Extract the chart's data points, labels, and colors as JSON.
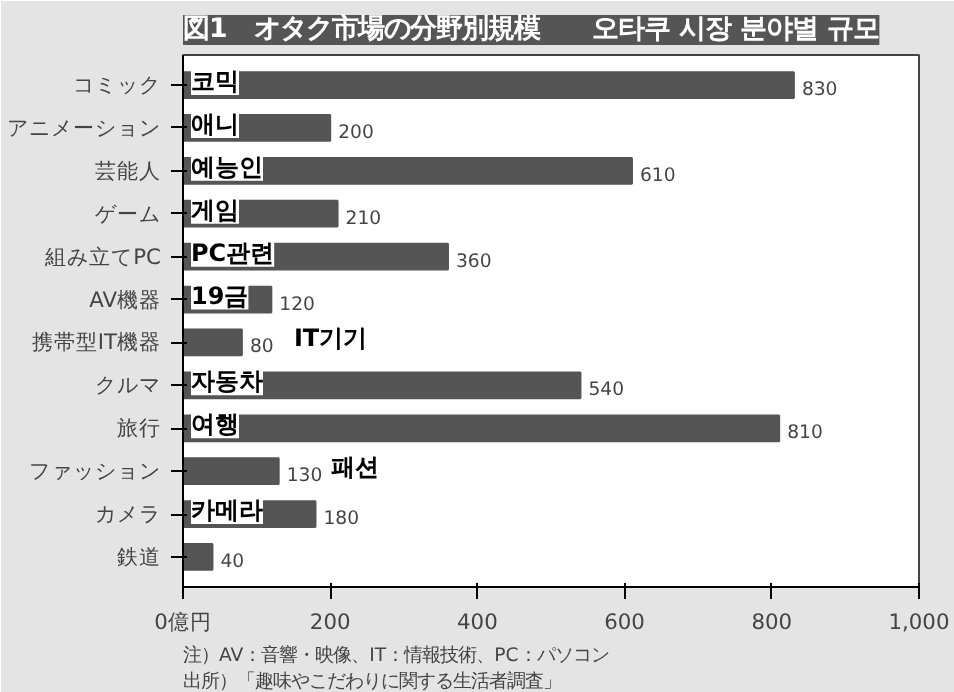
{
  "chart_data": {
    "type": "bar",
    "orientation": "horizontal",
    "title": "図1　オタク市場の分野別規模",
    "subtitle": "오타쿠 시장 분야별 규모",
    "categories": [
      "コミック",
      "アニメーション",
      "芸能人",
      "ゲーム",
      "組み立てPC",
      "AV機器",
      "携帯型IT機器",
      "クルマ",
      "旅行",
      "ファッション",
      "カメラ",
      "鉄道"
    ],
    "values": [
      830,
      200,
      610,
      210,
      360,
      120,
      80,
      540,
      810,
      130,
      180,
      40
    ],
    "color": "#555555",
    "data_labels": true,
    "xlim": [
      0,
      1000
    ],
    "xticks": [
      {
        "value": 0,
        "label": "0億円"
      },
      200,
      400,
      600,
      800,
      {
        "value": 1000,
        "label": "1,000"
      }
    ],
    "grid": false,
    "annotations": [
      {
        "text": "코믹",
        "x": 10,
        "y": "コミック"
      },
      {
        "text": "애니",
        "x": 10,
        "y": "アニメーション"
      },
      {
        "text": "예능인",
        "x": 10,
        "y": "芸能人"
      },
      {
        "text": "게임",
        "x": 10,
        "y": "ゲーム"
      },
      {
        "text": "PC관련",
        "x": 15,
        "y": "組み立てPC"
      },
      {
        "text": "19금",
        "x": 15,
        "y": "AV機器"
      },
      {
        "text": "IT기기",
        "x": 80,
        "y": "携帯型IT機器"
      },
      {
        "text": "자동차",
        "x": 15,
        "y": "クルマ"
      },
      {
        "text": "여행",
        "x": 15,
        "y": "旅行"
      },
      {
        "text": "패션",
        "x": 130,
        "y": "ファッション"
      },
      {
        "text": "카메라",
        "x": 10,
        "y": "カメラ"
      },
      "注）AV：音響・映像、IT：情報技術、PC：パソコン",
      "出所）「趣味やこだわりに関する生活者調査」"
    ]
  }
}
